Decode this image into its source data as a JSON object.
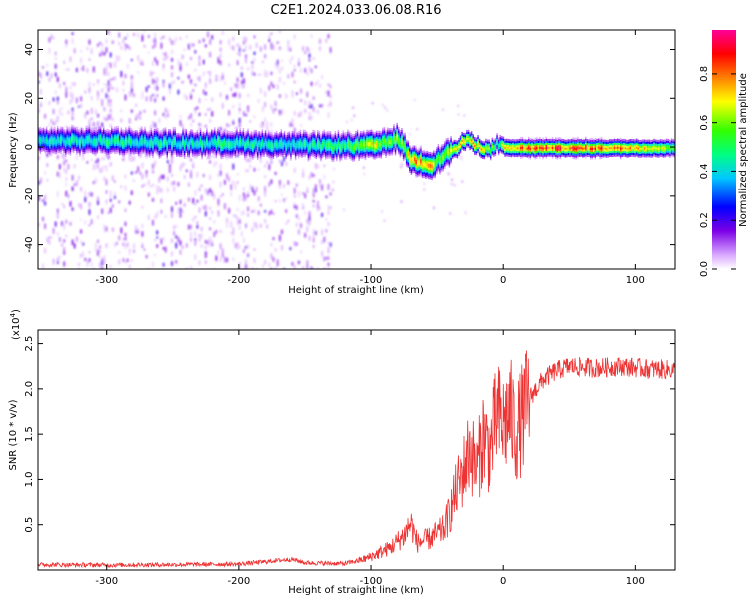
{
  "figure": {
    "title": "C2E1.2024.033.06.08.R16"
  },
  "chart_data": [
    {
      "type": "heatmap",
      "xlabel": "Height of straight line (km)",
      "ylabel": "Frequency (Hz)",
      "xlim": [
        -352,
        130
      ],
      "ylim": [
        -50,
        48
      ],
      "xticks": [
        -300,
        -200,
        -100,
        0,
        100
      ],
      "yticks": [
        -40,
        -20,
        0,
        20,
        40
      ],
      "colorbar": {
        "label": "Normalized spectral amplitude",
        "range": [
          0,
          0.98
        ],
        "ticks": [
          0.0,
          0.2,
          0.4,
          0.6,
          0.8
        ],
        "colormap": "white-purple-blue-cyan-green-yellow-red-magenta"
      },
      "ridge": {
        "x": [
          -352,
          -300,
          -250,
          -200,
          -150,
          -120,
          -110,
          -100,
          -90,
          -80,
          -75,
          -70,
          -60,
          -55,
          -50,
          -45,
          -40,
          -35,
          -30,
          -25,
          -20,
          -10,
          -5,
          0,
          20,
          50,
          100,
          130
        ],
        "freq": [
          3,
          3,
          2,
          2,
          1,
          1,
          1,
          1,
          2,
          4,
          0,
          -5,
          -6,
          -7,
          -5,
          -3,
          -1,
          0,
          3,
          3,
          1,
          -1,
          2,
          0,
          0,
          0,
          0,
          0
        ],
        "peak_amplitude": [
          0.4,
          0.45,
          0.45,
          0.45,
          0.45,
          0.5,
          0.6,
          0.7,
          0.6,
          0.6,
          0.65,
          0.75,
          0.8,
          0.75,
          0.6,
          0.6,
          0.7,
          0.7,
          0.75,
          0.7,
          0.75,
          0.6,
          0.5,
          0.7,
          0.85,
          0.85,
          0.8,
          0.6
        ]
      },
      "noise_region_x": [
        -352,
        -130
      ]
    },
    {
      "type": "line",
      "xlabel": "Height of straight line (km)",
      "ylabel": "SNR (10 * v/v)",
      "y_multiplier": "(x10",
      "y_multiplier_exp": "4",
      "y_multiplier_close": ")",
      "xlim": [
        -352,
        130
      ],
      "ylim": [
        0,
        26500
      ],
      "xticks": [
        -300,
        -200,
        -100,
        0,
        100
      ],
      "yticks": [
        5000,
        10000,
        15000,
        20000,
        25000
      ],
      "ytick_labels": [
        "0.5",
        "1.0",
        "1.5",
        "2.0",
        "2.5"
      ],
      "series": [
        {
          "color": "#ee3333",
          "x": [
            -352,
            -300,
            -200,
            -160,
            -150,
            -120,
            -105,
            -95,
            -85,
            -75,
            -70,
            -65,
            -55,
            -45,
            -40,
            -35,
            -30,
            -25,
            -20,
            -15,
            -10,
            -5,
            0,
            5,
            10,
            20,
            30,
            40,
            50,
            70,
            90,
            110,
            130
          ],
          "y": [
            600,
            550,
            650,
            1200,
            800,
            700,
            1200,
            1800,
            2500,
            3800,
            5200,
            3000,
            3500,
            4500,
            6500,
            9000,
            11000,
            13500,
            11000,
            15000,
            13000,
            17000,
            16000,
            17500,
            15000,
            19000,
            21000,
            22000,
            22500,
            22300,
            22500,
            22200,
            22100
          ]
        }
      ]
    }
  ]
}
